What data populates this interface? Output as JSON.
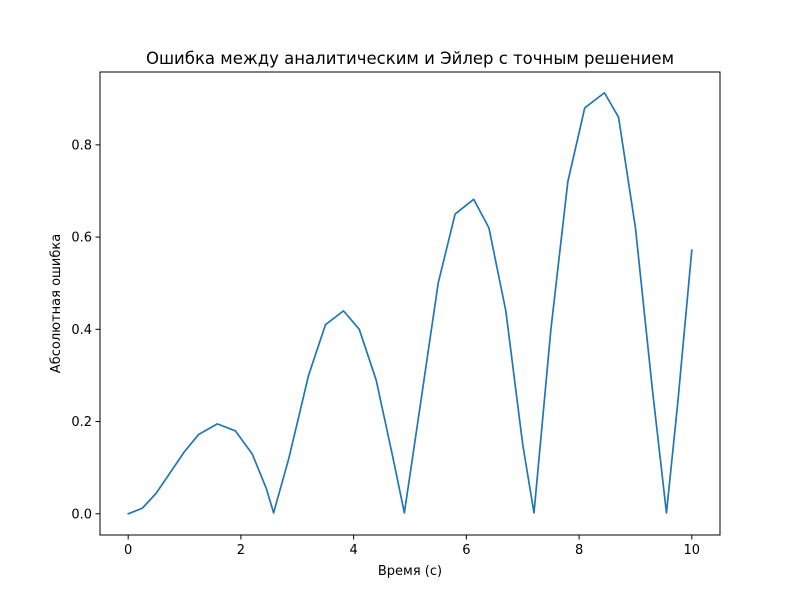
{
  "chart_data": {
    "type": "line",
    "title": "Ошибка между аналитическим и Эйлер с точным решением",
    "xlabel": "Время (с)",
    "ylabel": "Абсолютная ошибка",
    "xlim": [
      -0.5,
      10.5
    ],
    "ylim": [
      -0.046,
      0.958
    ],
    "xticks": [
      0,
      2,
      4,
      6,
      8,
      10
    ],
    "xtick_labels": [
      "0",
      "2",
      "4",
      "6",
      "8",
      "10"
    ],
    "yticks": [
      0.0,
      0.2,
      0.4,
      0.6,
      0.8
    ],
    "ytick_labels": [
      "0.0",
      "0.2",
      "0.4",
      "0.6",
      "0.8"
    ],
    "grid": false,
    "legend": "none",
    "series": [
      {
        "color": "#1f77b4",
        "x": [
          0,
          0.25,
          0.5,
          0.75,
          1.0,
          1.25,
          1.58,
          1.9,
          2.2,
          2.45,
          2.58,
          2.85,
          3.2,
          3.5,
          3.82,
          4.1,
          4.4,
          4.7,
          4.9,
          5.2,
          5.5,
          5.8,
          6.13,
          6.4,
          6.7,
          7.0,
          7.2,
          7.5,
          7.8,
          8.1,
          8.45,
          8.7,
          9.0,
          9.3,
          9.55,
          9.75,
          10.0
        ],
        "y": [
          0.0,
          0.012,
          0.045,
          0.09,
          0.135,
          0.172,
          0.195,
          0.18,
          0.13,
          0.055,
          0.002,
          0.12,
          0.3,
          0.41,
          0.44,
          0.4,
          0.29,
          0.12,
          0.002,
          0.25,
          0.5,
          0.65,
          0.682,
          0.62,
          0.44,
          0.15,
          0.002,
          0.4,
          0.72,
          0.88,
          0.913,
          0.86,
          0.62,
          0.27,
          0.002,
          0.24,
          0.572
        ]
      }
    ]
  }
}
